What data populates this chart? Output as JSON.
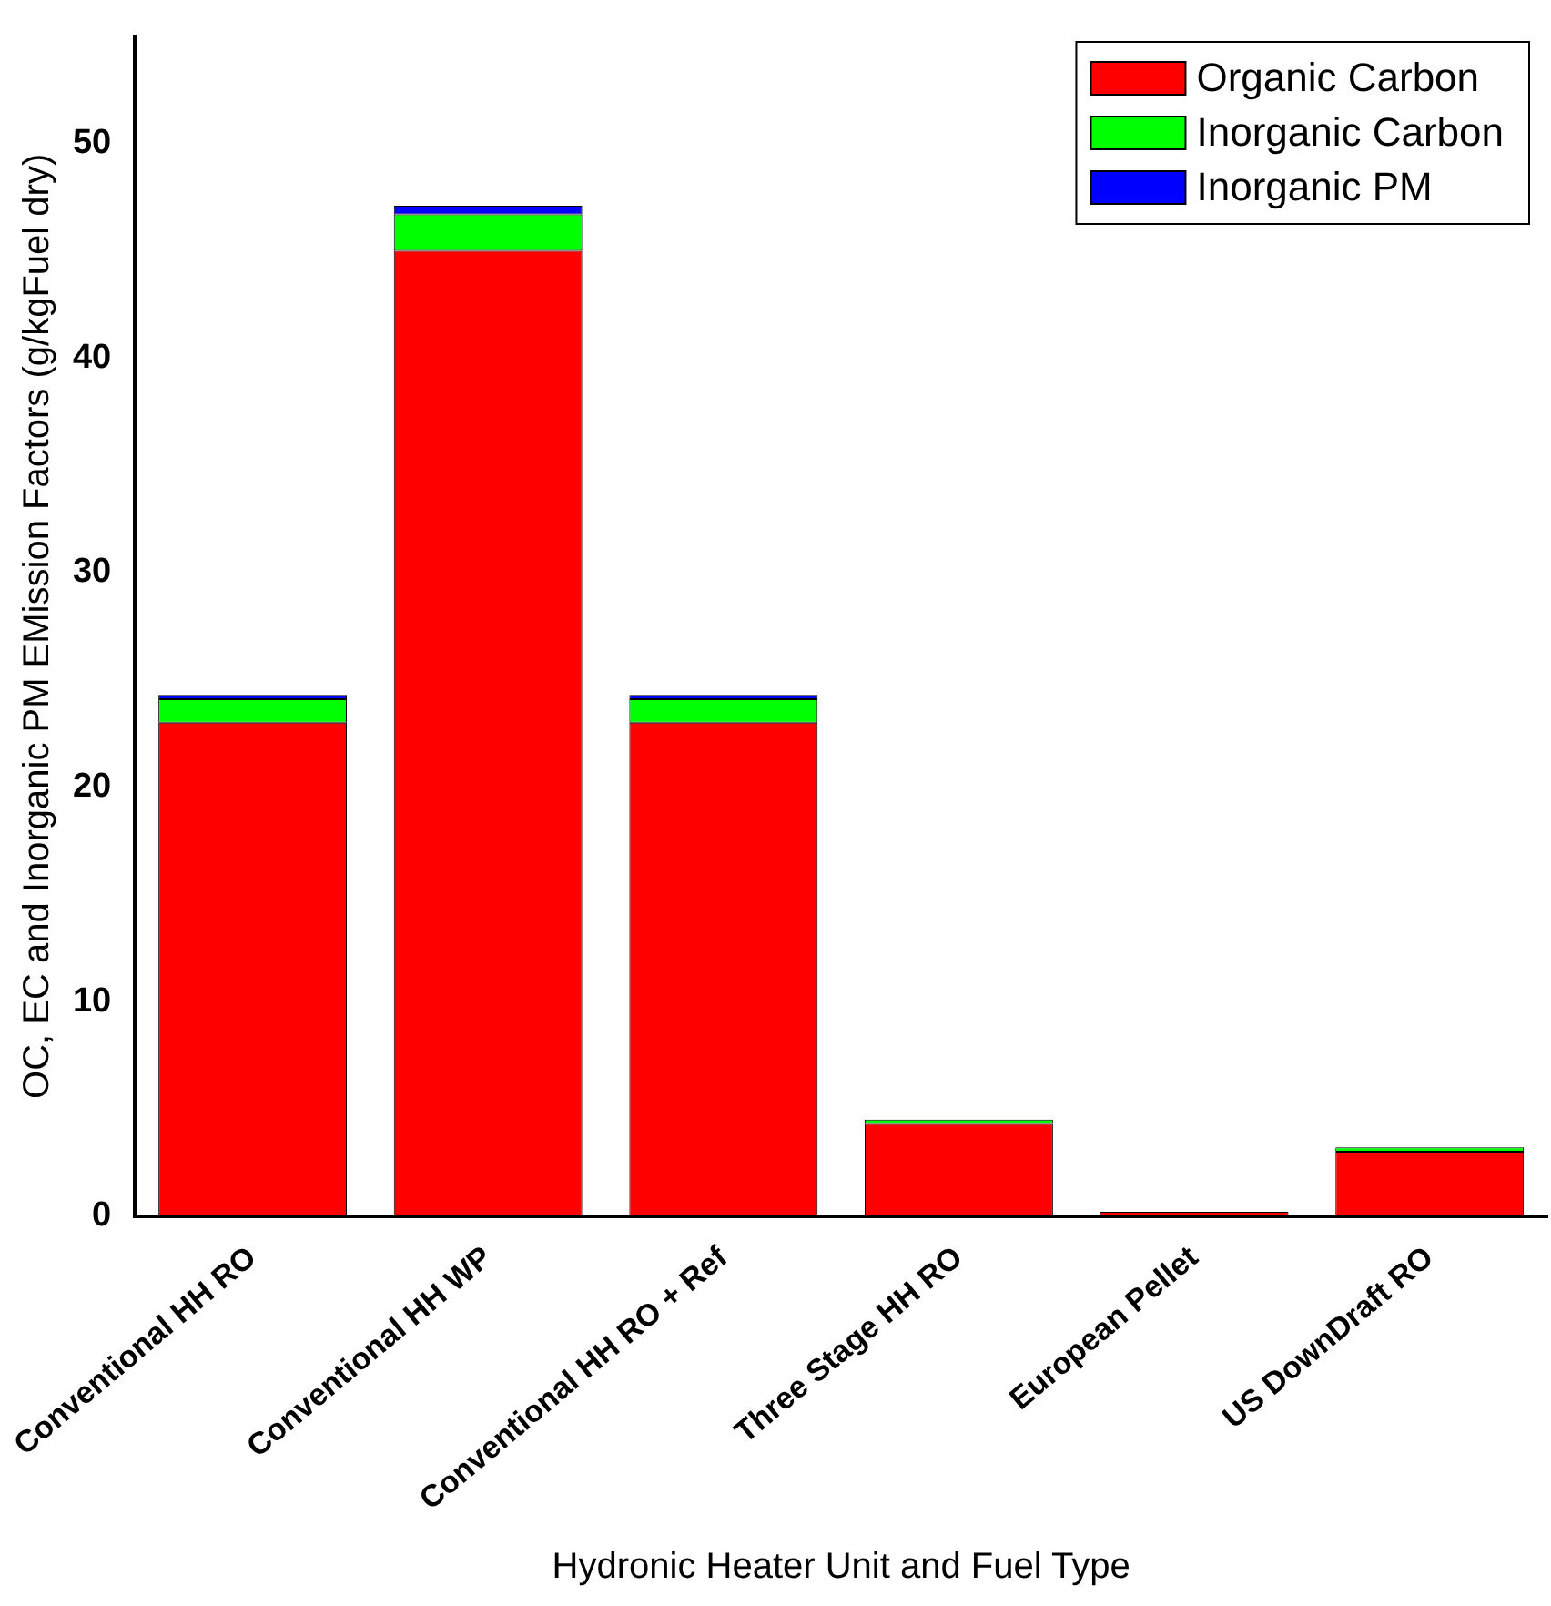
{
  "chart_data": {
    "type": "bar",
    "stacked": true,
    "xlabel": "Hydronic Heater Unit and Fuel Type",
    "ylabel": "OC, EC and Inorganic PM EMission Factors (g/kgFuel dry)",
    "categories": [
      "Conventional HH RO",
      "Conventional HH WP",
      "Conventional HH RO + Ref",
      "Three Stage HH RO",
      "European Pellet",
      "US DownDraft RO"
    ],
    "series": [
      {
        "name": "Organic Carbon",
        "color": "#ff0000",
        "values": [
          23.0,
          45.0,
          23.0,
          4.3,
          0.2,
          3.0
        ]
      },
      {
        "name": "Inorganic Carbon",
        "color": "#00ff00",
        "values": [
          1.1,
          1.7,
          1.1,
          0.2,
          null,
          0.2
        ]
      },
      {
        "name": "Inorganic PM",
        "color": "#0000ff",
        "values": [
          0.2,
          0.4,
          0.2,
          0.0,
          0.0,
          null
        ]
      }
    ],
    "ylim": [
      0,
      55
    ],
    "yticks": [
      0,
      10,
      20,
      30,
      40,
      50
    ],
    "grid": false,
    "legend": "top right"
  }
}
